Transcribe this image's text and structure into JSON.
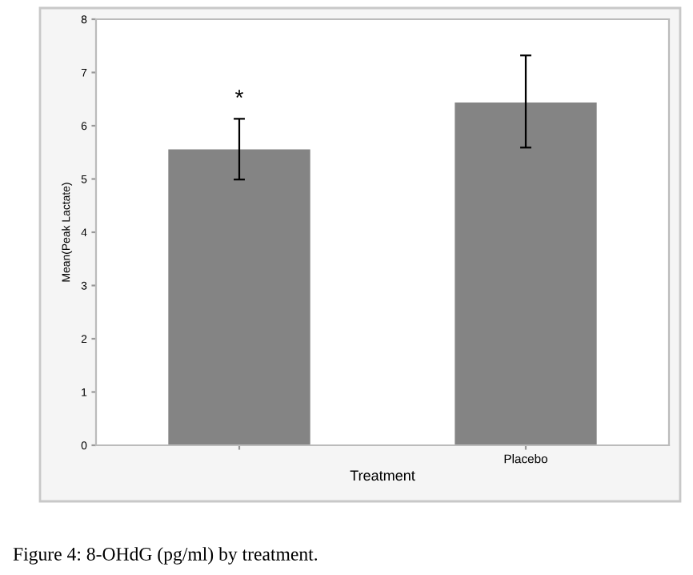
{
  "chart_data": {
    "type": "bar",
    "xlabel": "Treatment",
    "ylabel": "Mean(Peak Lactate)",
    "categories": [
      null,
      "Placebo"
    ],
    "values": [
      5.57,
      6.45
    ],
    "color": "#848484",
    "errors": [
      [
        4.99,
        6.13
      ],
      [
        5.59,
        7.32
      ]
    ],
    "ylim": [
      0,
      8
    ],
    "yticks": [
      0,
      1,
      2,
      3,
      4,
      5,
      6,
      7,
      8
    ],
    "grid": false,
    "legend": false,
    "annotations": [
      "*",
      "Figure 4: 8-OHdG (pg/ml) by treatment."
    ]
  }
}
